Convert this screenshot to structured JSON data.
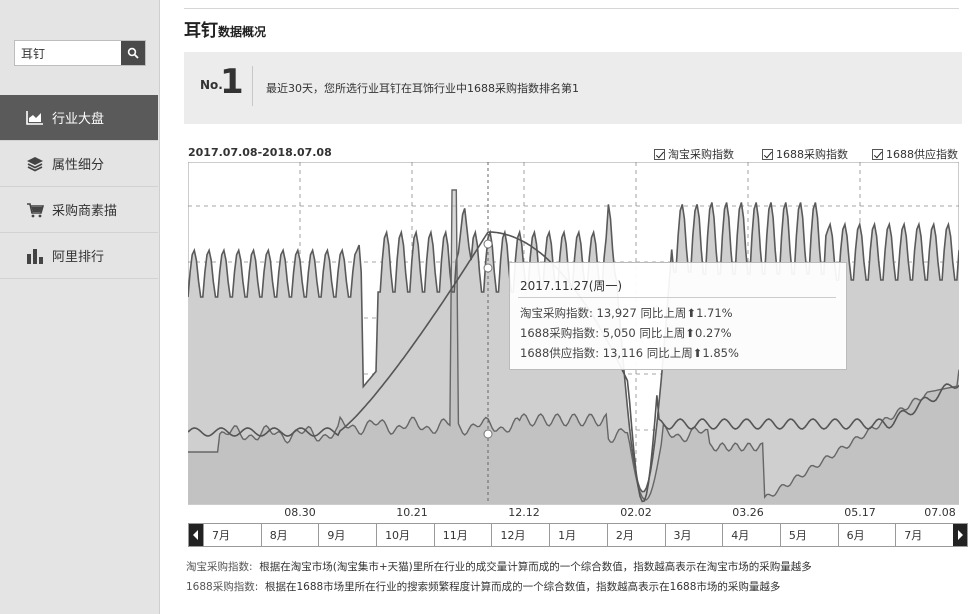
{
  "sidebar": {
    "search": {
      "value": "耳钉",
      "placeholder": ""
    },
    "items": [
      {
        "label": "行业大盘",
        "icon": "area-chart-icon",
        "active": true
      },
      {
        "label": "属性细分",
        "icon": "layers-icon",
        "active": false
      },
      {
        "label": "采购商素描",
        "icon": "cart-icon",
        "active": false
      },
      {
        "label": "阿里排行",
        "icon": "bar-chart-icon",
        "active": false
      }
    ]
  },
  "header": {
    "title": "耳钉",
    "subtitle": "数据概况"
  },
  "rank": {
    "no_label": "No.",
    "number": "1",
    "text": "最近30天，您所选行业耳钉在耳饰行业中1688采购指数排名第1"
  },
  "chart_header": {
    "date_range": "2017.07.08-2018.07.08",
    "legend": [
      "淘宝采购指数",
      "1688采购指数",
      "1688供应指数"
    ]
  },
  "chart_data": {
    "type": "line",
    "x_ticks": [
      "08.30",
      "10.21",
      "12.12",
      "02.02",
      "03.26",
      "05.17",
      "07.08"
    ],
    "series": [
      {
        "name": "淘宝采购指数"
      },
      {
        "name": "1688采购指数"
      },
      {
        "name": "1688供应指数"
      }
    ],
    "grid": true
  },
  "tooltip": {
    "date": "2017.11.27(周一)",
    "rows": [
      {
        "label": "淘宝采购指数:",
        "value": "13,927",
        "compare": "同比上周",
        "arrow": "⬆",
        "pct": "1.71%"
      },
      {
        "label": "1688采购指数:",
        "value": "5,050",
        "compare": "同比上周",
        "arrow": "⬆",
        "pct": "0.27%"
      },
      {
        "label": "1688供应指数:",
        "value": "13,116",
        "compare": "同比上周",
        "arrow": "⬆",
        "pct": "1.85%"
      }
    ]
  },
  "timebar": {
    "months": [
      "7月",
      "8月",
      "9月",
      "10月",
      "11月",
      "12月",
      "1月",
      "2月",
      "3月",
      "4月",
      "5月",
      "6月",
      "7月"
    ]
  },
  "notes": [
    {
      "label": "淘宝采购指数:",
      "text": "根据在淘宝市场(淘宝集市+天猫)里所在行业的成交量计算而成的一个综合数值，指数越高表示在淘宝市场的采购量越多"
    },
    {
      "label": "1688采购指数:",
      "text": "根据在1688市场里所在行业的搜索频繁程度计算而成的一个综合数值，指数越高表示在1688市场的采购量越多"
    }
  ]
}
